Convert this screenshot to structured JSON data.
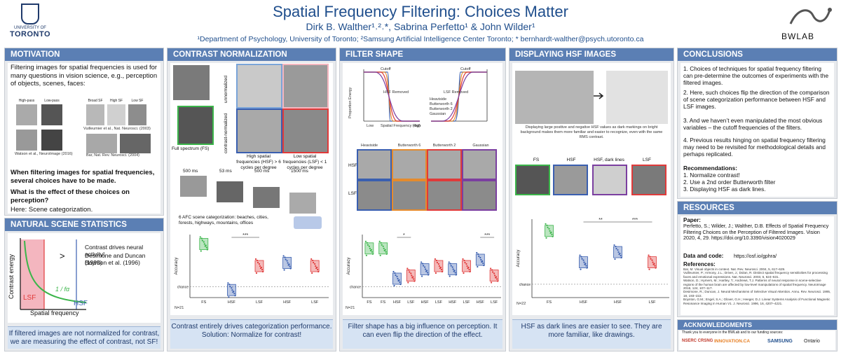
{
  "header": {
    "title": "Spatial Frequency Filtering: Choices Matter",
    "authors": "Dirk B. Walther¹˒²˒*, Sabrina Perfetto¹ & John Wilder¹",
    "affiliations": "¹Department of Psychology, University of Toronto; ²Samsung Artificial Intelligence Center Toronto; * bernhardt-walther@psych.utoronto.ca",
    "uoft_line1": "UNIVERSITY OF",
    "uoft_line2": "TORONTO",
    "lab_logo": "BWLAB"
  },
  "motivation": {
    "title": "MOTIVATION",
    "intro": "Filtering images for spatial frequencies is used for many questions in vision science, e.g., perception of objects, scenes, faces:",
    "img_labels": [
      "High-pass",
      "Low-pass",
      "Broad SF",
      "High SF",
      "Low SF"
    ],
    "cite1": "Vuilleumier et al., Nat. Neurosci. (2003)",
    "cite2": "Watson et al., NeuroImage (2016)",
    "cite3": "Bar, Nat. Rev. Neurosci. (2004)",
    "bold1": "When filtering images for spatial frequencies, several choices have to be made.",
    "bold2": "What is the effect of these choices on perception?",
    "here": "Here: Scene categorization."
  },
  "natural": {
    "title": "NATURAL SCENE STATISTICS",
    "ylabel": "Contrast energy",
    "xlabel": "Spatial frequency",
    "lsf": "LSF",
    "hsf": "HSF",
    "gt": ">",
    "curve_label": "1 / fα",
    "note1": "Contrast drives neural activity!",
    "note2": "Desimone and Duncan (1995)",
    "note3": "Boynton et al. (1996)",
    "footer": "If filtered images are not normalized for contrast, we are measuring the effect of contrast, not SF!"
  },
  "contrast": {
    "title": "CONTRAST NORMALIZATION",
    "unnorm": "unnormalized",
    "norm": "contrast-normalized",
    "fs_label": "Full spectrum (FS)",
    "hsf_label": "High spatial frequencies (HSF) > 6 cycles per degree",
    "lsf_label": "Low spatial frequencies (LSF) < 1 cycles per degree",
    "timings": [
      "500 ms",
      "53 ms",
      "500 ms",
      "1500 ms"
    ],
    "task": "6 AFC scene categorization: beaches, cities, forests, highways, mountains, offices",
    "n": "N=21",
    "ylabel": "Accuracy",
    "chance": "chance",
    "sig": "***",
    "xticks": [
      "FS",
      "HSF",
      "LSF",
      "HSF",
      "LSF"
    ],
    "groups": [
      "unnormalized",
      "contrast-normalized"
    ],
    "footer": "Contrast entirely drives categorization performance. Solution: Normalize for contrast!"
  },
  "filter": {
    "title": "FILTER SHAPE",
    "ylabel": "Proportion Energy",
    "xlabel": "Spatial Frequency (log)",
    "low": "Low",
    "high": "High",
    "cutoff": "Cutoff",
    "hsf_removed": "HSF Removed",
    "lsf_removed": "LSF Removed",
    "lsf_retained": "LSF Retained",
    "hsf_retained": "HSF Retained",
    "legend": [
      "Heaviside",
      "Butterworth 6",
      "Butterworth 2",
      "Gaussian"
    ],
    "yticks": [
      "1.0",
      "0.8",
      "0.6",
      "0.4",
      "0.2",
      "0"
    ],
    "row_hsf": "HSF",
    "row_lsf": "LSF",
    "n": "N=21",
    "acc": "Accuracy",
    "chance": "chance",
    "sig1": "*",
    "sig2": "***",
    "xticks": [
      "FS",
      "HSF",
      "LSF",
      "HSF",
      "LSF",
      "HSF",
      "LSF",
      "HSF",
      "LSF"
    ],
    "groups": [
      "Heaviside",
      "Butterworth 6",
      "Butterworth 2",
      "Gaussian"
    ],
    "footer": "Filter shape has a big influence on perception. It can even flip the direction of the effect."
  },
  "display": {
    "title": "DISPLAYING HSF IMAGES",
    "caption": "Displaying large positive and negative HSF values as dark markings on bright background makes them more familiar and easier to recognize, even with the same RMS contrast.",
    "cols": [
      "FS",
      "HSF",
      "HSF, dark lines",
      "LSF"
    ],
    "n": "N=22",
    "acc": "Accuracy",
    "chance": "chance",
    "sig1": "**",
    "sig2": "***",
    "xticks": [
      "FS",
      "HSF",
      "HSF",
      "LSF"
    ],
    "sublabel": "dark lines",
    "footer": "HSF as dark lines are easier to see. They are more familiar, like drawings."
  },
  "conclusions": {
    "title": "CONCLUSIONS",
    "p1": "1. Choices of techniques for spatial frequency filtering can pre-determine the outcomes of experiments with the filtered images.",
    "p2": "2. Here, such choices flip the direction of the comparison of scene categorization performance between HSF and LSF images.",
    "p3": "3. And we haven’t even manipulated the most obvious variables – the cutoff frequencies of the filters.",
    "p4": "4. Previous results hinging on spatial frequency filtering may need to be revisited for methodological details and perhaps replicated.",
    "rec_title": "Recommendations:",
    "rec1": "1. Normalize contrast!",
    "rec2": "2. Use a 2nd order Butterworth filter",
    "rec3": "3. Displaying HSF as dark lines."
  },
  "resources": {
    "title": "RESOURCES",
    "paper_h": "Paper:",
    "paper": "Perfetto, S.; Wilder, J.; Walther, D.B. Effects of Spatial Frequency Filtering Choices on the Perception of Filtered Images. Vision 2020, 4, 29. https://doi.org/10.3390/vision4020029",
    "data_h": "Data and code:",
    "data": "https://osf.io/gphra/",
    "refs_h": "References:",
    "refs": [
      "Bar, M. Visual objects in context. Nat. Rev. Neurosci. 2004, 5, 617–629.",
      "Vuilleumier, P.; Armony, J.L.; Driver, J.; Dolan, R. Distinct spatial frequency sensitivities for processing faces and emotional expressions. Nat. Neurosci. 2003, 6, 624–631.",
      "Watson, D.; Hymers, M.; Hartley, T.; Andrews, T.J. Patterns of neural response in scene-selective regions of the human brain are affected by low-level manipulations of spatial frequency. NeuroImage 2016, 124, 107–117.",
      "Desimone, R.; Duncan, J. Neural Mechanisms of Selective Visual Attention. Annu. Rev. Neurosci. 1995, 18, 193–222.",
      "Boynton, G.M.; Engel, S.A.; Glover, G.H.; Heeger, D.J. Linear Systems Analysis of Functional Magnetic Resonance Imaging in Human V1. J. Neurosci. 1996, 16, 4207–4221."
    ]
  },
  "ack": {
    "title": "ACKNOWLEDGMENTS",
    "text": "Thank you to everyone in the BWLab and to our funding sources:",
    "sponsors": [
      "NSERC CRSNG",
      "INNOVATION.CA",
      "SAMSUNG",
      "Ontario"
    ]
  },
  "colors": {
    "header_blue": "#1f4e8c",
    "panel_title": "#5b7fb4",
    "fs_green": "#3bb54a",
    "hsf_blue": "#3a5fb0",
    "lsf_red": "#e03a3a",
    "lsf_pink": "#f4b6bf"
  }
}
